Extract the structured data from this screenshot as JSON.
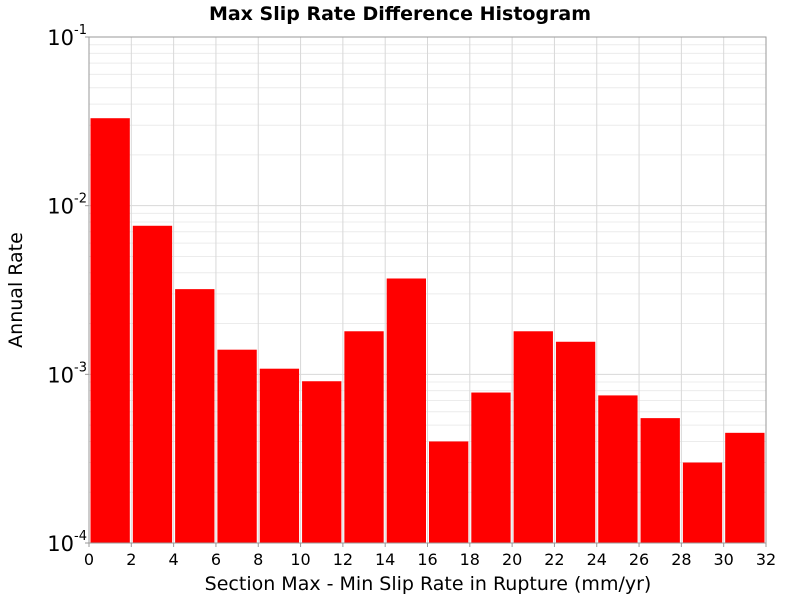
{
  "chart_data": {
    "type": "bar",
    "title": "Max Slip Rate Difference Histogram",
    "xlabel": "Section Max - Min Slip Rate in Rupture (mm/yr)",
    "ylabel": "Annual Rate",
    "xlim": [
      0,
      32
    ],
    "ylim": [
      0.0001,
      0.1
    ],
    "y_scale": "log",
    "grid": true,
    "bar_color": "#ff0000",
    "x_ticks": [
      "0",
      "2",
      "4",
      "6",
      "8",
      "10",
      "12",
      "14",
      "16",
      "18",
      "20",
      "22",
      "24",
      "26",
      "28",
      "30",
      "32"
    ],
    "y_ticks": [
      {
        "value": 0.0001,
        "base": "10",
        "exp": "-4"
      },
      {
        "value": 0.001,
        "base": "10",
        "exp": "-3"
      },
      {
        "value": 0.01,
        "base": "10",
        "exp": "-2"
      },
      {
        "value": 0.1,
        "base": "10",
        "exp": "-1"
      }
    ],
    "bins": [
      {
        "x0": 0,
        "x1": 2,
        "value": 0.033
      },
      {
        "x0": 2,
        "x1": 4,
        "value": 0.0076
      },
      {
        "x0": 4,
        "x1": 6,
        "value": 0.0032
      },
      {
        "x0": 6,
        "x1": 8,
        "value": 0.0014
      },
      {
        "x0": 8,
        "x1": 10,
        "value": 0.00108
      },
      {
        "x0": 10,
        "x1": 12,
        "value": 0.00091
      },
      {
        "x0": 12,
        "x1": 14,
        "value": 0.0018
      },
      {
        "x0": 14,
        "x1": 16,
        "value": 0.0037
      },
      {
        "x0": 16,
        "x1": 18,
        "value": 0.0004
      },
      {
        "x0": 18,
        "x1": 20,
        "value": 0.00078
      },
      {
        "x0": 20,
        "x1": 22,
        "value": 0.0018
      },
      {
        "x0": 22,
        "x1": 24,
        "value": 0.00156
      },
      {
        "x0": 24,
        "x1": 26,
        "value": 0.00075
      },
      {
        "x0": 26,
        "x1": 28,
        "value": 0.00055
      },
      {
        "x0": 28,
        "x1": 30,
        "value": 0.0003
      },
      {
        "x0": 30,
        "x1": 32,
        "value": 0.00045
      }
    ]
  }
}
